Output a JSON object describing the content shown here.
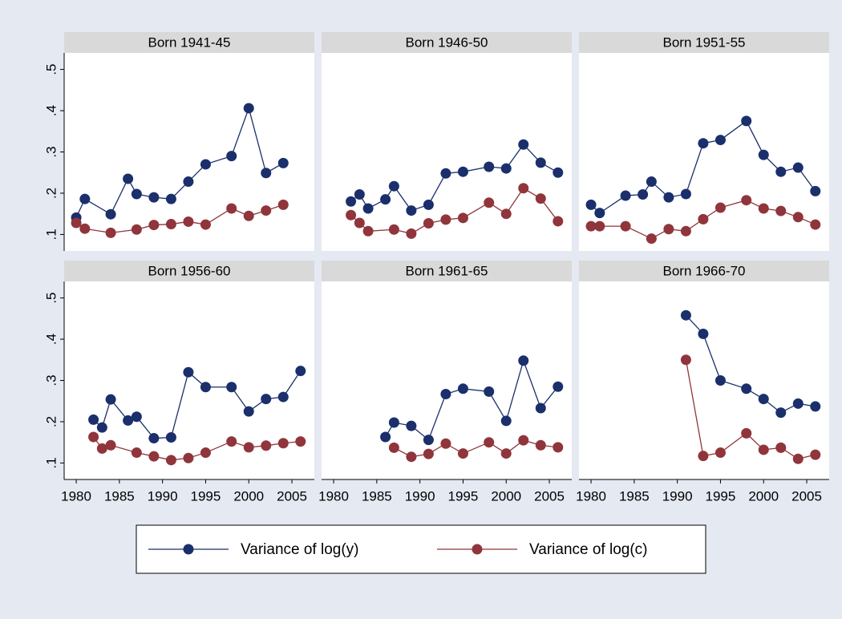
{
  "chart_data": {
    "type": "line",
    "xlim": [
      1978.6,
      2007.6
    ],
    "xticks": [
      1980,
      1985,
      1990,
      1995,
      2000,
      2005
    ],
    "ylim": [
      0.06,
      0.54
    ],
    "yticks": [
      {
        "value": 0.1,
        "label": ".1"
      },
      {
        "value": 0.2,
        "label": ".2"
      },
      {
        "value": 0.3,
        "label": ".3"
      },
      {
        "value": 0.4,
        "label": ".4"
      },
      {
        "value": 0.5,
        "label": ".5"
      }
    ],
    "series": [
      {
        "name": "Variance of log(y)",
        "color": "#1a2f6b"
      },
      {
        "name": "Variance of log(c)",
        "color": "#90353b"
      }
    ],
    "panels": [
      {
        "title": "Born 1941-45",
        "series": [
          {
            "x": [
              1980,
              1981,
              1984,
              1986,
              1987,
              1989,
              1991,
              1993,
              1995,
              1998,
              2000,
              2002,
              2004
            ],
            "values": [
              0.141,
              0.186,
              0.149,
              0.235,
              0.198,
              0.19,
              0.186,
              0.228,
              0.27,
              0.29,
              0.406,
              0.249,
              0.273
            ]
          },
          {
            "x": [
              1980,
              1981,
              1984,
              1987,
              1989,
              1991,
              1993,
              1995,
              1998,
              2000,
              2002,
              2004
            ],
            "values": [
              0.128,
              0.114,
              0.104,
              0.112,
              0.123,
              0.125,
              0.131,
              0.124,
              0.163,
              0.145,
              0.158,
              0.172
            ]
          }
        ]
      },
      {
        "title": "Born 1946-50",
        "series": [
          {
            "x": [
              1982,
              1983,
              1984,
              1986,
              1987,
              1989,
              1991,
              1993,
              1995,
              1998,
              2000,
              2002,
              2004,
              2006
            ],
            "values": [
              0.18,
              0.197,
              0.163,
              0.185,
              0.217,
              0.158,
              0.172,
              0.248,
              0.252,
              0.264,
              0.26,
              0.318,
              0.274,
              0.25
            ]
          },
          {
            "x": [
              1982,
              1983,
              1984,
              1987,
              1989,
              1991,
              1993,
              1995,
              1998,
              2000,
              2002,
              2004,
              2006
            ],
            "values": [
              0.147,
              0.128,
              0.108,
              0.112,
              0.102,
              0.127,
              0.136,
              0.14,
              0.177,
              0.15,
              0.212,
              0.187,
              0.132
            ]
          }
        ]
      },
      {
        "title": "Born 1951-55",
        "series": [
          {
            "x": [
              1980,
              1981,
              1984,
              1986,
              1987,
              1989,
              1991,
              1993,
              1995,
              1998,
              2000,
              2002,
              2004,
              2006
            ],
            "values": [
              0.172,
              0.152,
              0.194,
              0.197,
              0.228,
              0.19,
              0.198,
              0.321,
              0.329,
              0.375,
              0.293,
              0.252,
              0.262,
              0.205
            ]
          },
          {
            "x": [
              1980,
              1981,
              1984,
              1987,
              1989,
              1991,
              1993,
              1995,
              1998,
              2000,
              2002,
              2004,
              2006
            ],
            "values": [
              0.12,
              0.12,
              0.12,
              0.09,
              0.113,
              0.108,
              0.137,
              0.165,
              0.183,
              0.163,
              0.157,
              0.142,
              0.124
            ]
          }
        ]
      },
      {
        "title": "Born 1956-60",
        "series": [
          {
            "x": [
              1982,
              1983,
              1984,
              1986,
              1987,
              1989,
              1991,
              1993,
              1995,
              1998,
              2000,
              2002,
              2004,
              2006
            ],
            "values": [
              0.205,
              0.186,
              0.254,
              0.203,
              0.212,
              0.16,
              0.162,
              0.32,
              0.284,
              0.284,
              0.225,
              0.255,
              0.26,
              0.323
            ]
          },
          {
            "x": [
              1982,
              1983,
              1984,
              1987,
              1989,
              1991,
              1993,
              1995,
              1998,
              2000,
              2002,
              2004,
              2006
            ],
            "values": [
              0.163,
              0.135,
              0.143,
              0.125,
              0.116,
              0.107,
              0.112,
              0.125,
              0.152,
              0.138,
              0.142,
              0.148,
              0.152
            ]
          }
        ]
      },
      {
        "title": "Born 1961-65",
        "series": [
          {
            "x": [
              1986,
              1987,
              1989,
              1991,
              1993,
              1995,
              1998,
              2000,
              2002,
              2004,
              2006
            ],
            "values": [
              0.163,
              0.198,
              0.19,
              0.156,
              0.267,
              0.28,
              0.273,
              0.202,
              0.348,
              0.233,
              0.285
            ]
          },
          {
            "x": [
              1987,
              1989,
              1991,
              1993,
              1995,
              1998,
              2000,
              2002,
              2004,
              2006
            ],
            "values": [
              0.137,
              0.115,
              0.122,
              0.147,
              0.123,
              0.15,
              0.123,
              0.155,
              0.143,
              0.138
            ]
          }
        ]
      },
      {
        "title": "Born 1966-70",
        "series": [
          {
            "x": [
              1991,
              1993,
              1995,
              1998,
              2000,
              2002,
              2004,
              2006
            ],
            "values": [
              0.458,
              0.413,
              0.3,
              0.28,
              0.255,
              0.222,
              0.244,
              0.237
            ]
          },
          {
            "x": [
              1991,
              1993,
              1995,
              1998,
              2000,
              2002,
              2004,
              2006
            ],
            "values": [
              0.35,
              0.117,
              0.125,
              0.172,
              0.132,
              0.137,
              0.11,
              0.12
            ]
          }
        ]
      }
    ]
  }
}
